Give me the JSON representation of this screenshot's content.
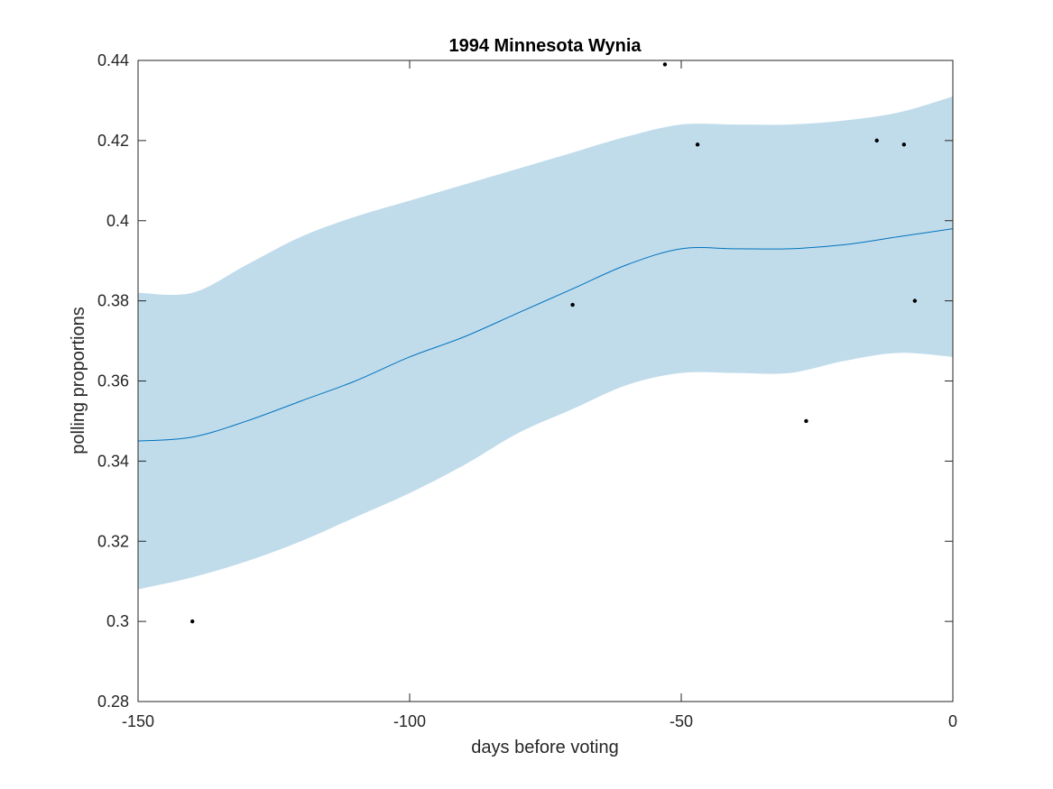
{
  "chart_data": {
    "type": "line",
    "title": "1994 Minnesota Wynia",
    "xlabel": "days before voting",
    "ylabel": "polling proportions",
    "xlim": [
      -150,
      0
    ],
    "ylim": [
      0.28,
      0.44
    ],
    "xticks": [
      -150,
      -100,
      -50,
      0
    ],
    "xtick_labels": [
      "-150",
      "-100",
      "-50",
      "0"
    ],
    "yticks": [
      0.28,
      0.3,
      0.32,
      0.34,
      0.36,
      0.38,
      0.4,
      0.42,
      0.44
    ],
    "ytick_labels": [
      "0.28",
      "0.3",
      "0.32",
      "0.34",
      "0.36",
      "0.38",
      "0.4",
      "0.42",
      "0.44"
    ],
    "grid": false,
    "band": {
      "x": [
        -150,
        -140,
        -130,
        -120,
        -110,
        -100,
        -90,
        -80,
        -70,
        -60,
        -50,
        -40,
        -30,
        -20,
        -10,
        0
      ],
      "lower": [
        0.308,
        0.311,
        0.315,
        0.32,
        0.326,
        0.332,
        0.339,
        0.347,
        0.353,
        0.359,
        0.362,
        0.362,
        0.362,
        0.365,
        0.367,
        0.366
      ],
      "upper": [
        0.382,
        0.382,
        0.389,
        0.396,
        0.401,
        0.405,
        0.409,
        0.413,
        0.417,
        0.421,
        0.424,
        0.424,
        0.424,
        0.425,
        0.427,
        0.431
      ]
    },
    "series": [
      {
        "x": [
          -150,
          -140,
          -130,
          -120,
          -110,
          -100,
          -90,
          -80,
          -70,
          -60,
          -50,
          -40,
          -30,
          -20,
          -10,
          0
        ],
        "y": [
          0.345,
          0.346,
          0.35,
          0.355,
          0.36,
          0.366,
          0.371,
          0.377,
          0.383,
          0.389,
          0.393,
          0.393,
          0.393,
          0.394,
          0.396,
          0.398
        ]
      }
    ],
    "points": {
      "x": [
        -140,
        -70,
        -53,
        -47,
        -27,
        -14,
        -9,
        -7
      ],
      "y": [
        0.3,
        0.379,
        0.439,
        0.419,
        0.35,
        0.42,
        0.419,
        0.38
      ]
    },
    "colors": {
      "band": "#c0dceb",
      "line": "#0072bd",
      "points": "#000000",
      "axes": "#262626"
    }
  }
}
